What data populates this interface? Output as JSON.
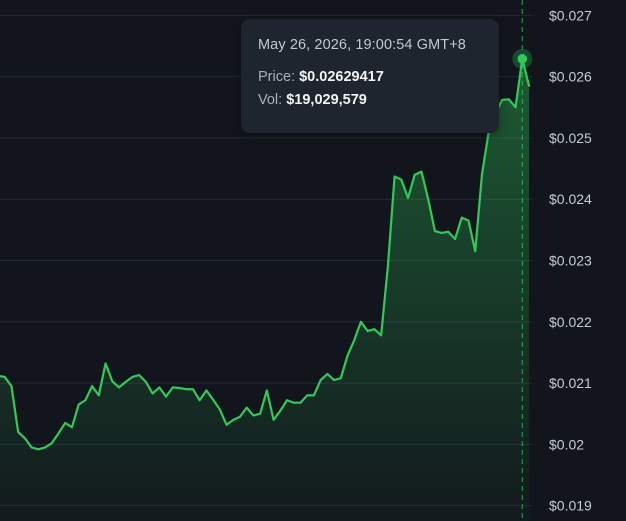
{
  "chart_data": {
    "type": "area",
    "y_axis": {
      "position": "right",
      "ylim": [
        0.01875,
        0.02725
      ],
      "ticks": [
        0.019,
        0.02,
        0.021,
        0.022,
        0.023,
        0.024,
        0.025,
        0.026,
        0.027
      ],
      "tick_labels": [
        "$0.019",
        "$0.02",
        "$0.021",
        "$0.022",
        "$0.023",
        "$0.024",
        "$0.025",
        "$0.026",
        "$0.027"
      ]
    },
    "grid": true,
    "colors": {
      "line": "#2fcb59",
      "fill": "#2fcb59",
      "background": "#12161c",
      "grid": "#232a33"
    },
    "values": [
      0.02112,
      0.0211,
      0.02095,
      0.0202,
      0.0201,
      0.01995,
      0.01992,
      0.01995,
      0.02002,
      0.02018,
      0.02035,
      0.02028,
      0.02065,
      0.02072,
      0.02095,
      0.0208,
      0.02132,
      0.02103,
      0.02093,
      0.02102,
      0.0211,
      0.02113,
      0.02102,
      0.02083,
      0.02093,
      0.02078,
      0.02093,
      0.02092,
      0.0209,
      0.0209,
      0.02072,
      0.02088,
      0.02073,
      0.02057,
      0.02032,
      0.0204,
      0.02045,
      0.0206,
      0.02047,
      0.0205,
      0.02088,
      0.0204,
      0.02055,
      0.02072,
      0.02068,
      0.02068,
      0.0208,
      0.0208,
      0.02105,
      0.02115,
      0.02105,
      0.02108,
      0.02145,
      0.0217,
      0.022,
      0.02185,
      0.02188,
      0.02178,
      0.0229,
      0.02437,
      0.02432,
      0.02402,
      0.0244,
      0.02445,
      0.024,
      0.02348,
      0.02345,
      0.02347,
      0.02335,
      0.0237,
      0.02365,
      0.02315,
      0.0244,
      0.0251,
      0.0254,
      0.02562,
      0.02563,
      0.0255,
      0.02629,
      0.02585
    ],
    "highlight_index": 78
  },
  "tooltip": {
    "datetime": "May 26, 2026, 19:00:54 GMT+8",
    "price_label": "Price:",
    "price_value": "$0.02629417",
    "vol_label": "Vol:",
    "vol_value": "$19,029,579"
  }
}
